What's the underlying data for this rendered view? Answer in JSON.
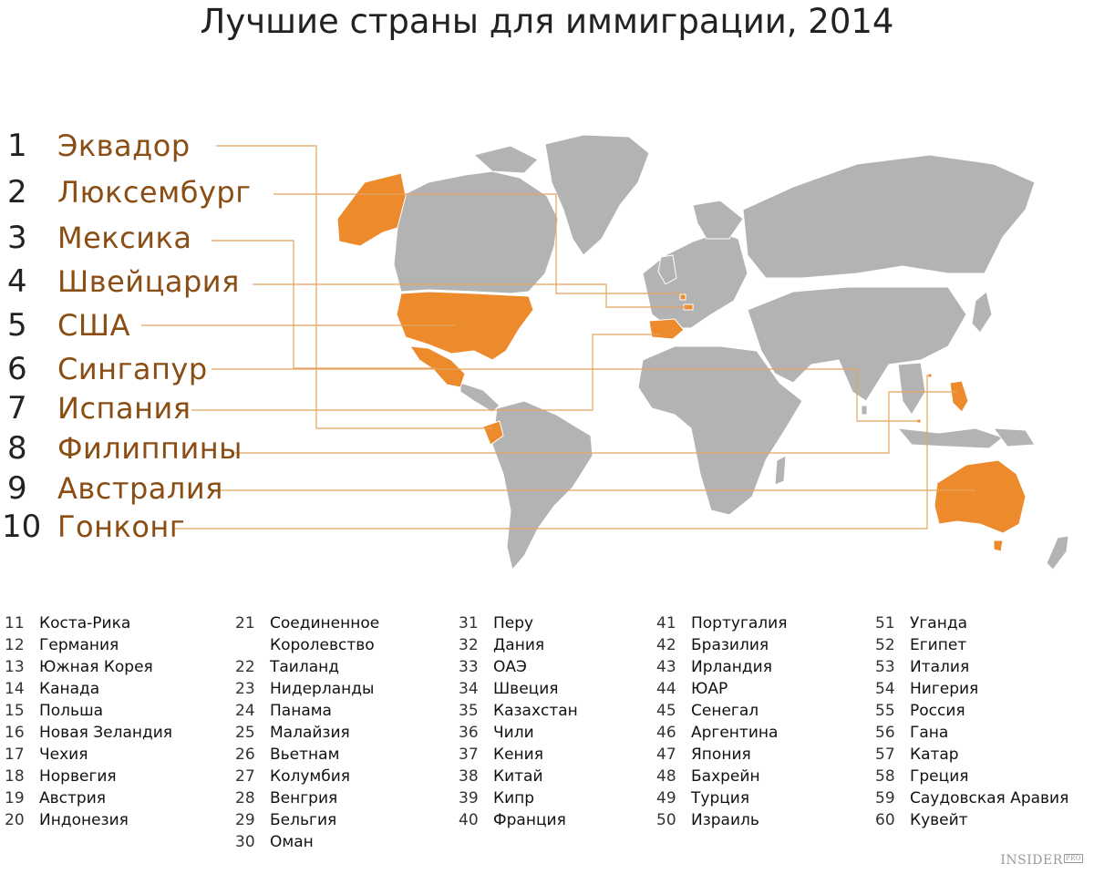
{
  "title": "Лучшие страны для иммиграции, 2014",
  "colors": {
    "highlight": "#ec8a2c",
    "land": "#b3b3b3",
    "leader": "#e5a45f",
    "rank_text": "#8a4d14"
  },
  "top10": [
    {
      "rank": "1",
      "name": "Эквадор"
    },
    {
      "rank": "2",
      "name": "Люксембург"
    },
    {
      "rank": "3",
      "name": "Мексика"
    },
    {
      "rank": "4",
      "name": "Швейцария"
    },
    {
      "rank": "5",
      "name": "США"
    },
    {
      "rank": "6",
      "name": "Сингапур"
    },
    {
      "rank": "7",
      "name": "Испания"
    },
    {
      "rank": "8",
      "name": "Филиппины"
    },
    {
      "rank": "9",
      "name": "Австралия"
    },
    {
      "rank": "10",
      "name": "Гонконг"
    }
  ],
  "list": [
    [
      {
        "rank": "11",
        "name": "Коста-Рика"
      },
      {
        "rank": "12",
        "name": "Германия"
      },
      {
        "rank": "13",
        "name": "Южная Корея"
      },
      {
        "rank": "14",
        "name": "Канада"
      },
      {
        "rank": "15",
        "name": "Польша"
      },
      {
        "rank": "16",
        "name": "Новая Зеландия"
      },
      {
        "rank": "17",
        "name": "Чехия"
      },
      {
        "rank": "18",
        "name": "Норвегия"
      },
      {
        "rank": "19",
        "name": "Австрия"
      },
      {
        "rank": "20",
        "name": "Индонезия"
      }
    ],
    [
      {
        "rank": "21",
        "name": "Соединенное"
      },
      {
        "rank": "",
        "name": "Королевство"
      },
      {
        "rank": "22",
        "name": "Таиланд"
      },
      {
        "rank": "23",
        "name": "Нидерланды"
      },
      {
        "rank": "24",
        "name": "Панама"
      },
      {
        "rank": "25",
        "name": "Малайзия"
      },
      {
        "rank": "26",
        "name": "Вьетнам"
      },
      {
        "rank": "27",
        "name": "Колумбия"
      },
      {
        "rank": "28",
        "name": "Венгрия"
      },
      {
        "rank": "29",
        "name": "Бельгия"
      },
      {
        "rank": "30",
        "name": "Оман"
      }
    ],
    [
      {
        "rank": "31",
        "name": "Перу"
      },
      {
        "rank": "32",
        "name": "Дания"
      },
      {
        "rank": "33",
        "name": "ОАЭ"
      },
      {
        "rank": "34",
        "name": "Швеция"
      },
      {
        "rank": "35",
        "name": "Казахстан"
      },
      {
        "rank": "36",
        "name": "Чили"
      },
      {
        "rank": "37",
        "name": "Кения"
      },
      {
        "rank": "38",
        "name": "Китай"
      },
      {
        "rank": "39",
        "name": "Кипр"
      },
      {
        "rank": "40",
        "name": "Франция"
      }
    ],
    [
      {
        "rank": "41",
        "name": "Португалия"
      },
      {
        "rank": "42",
        "name": "Бразилия"
      },
      {
        "rank": "43",
        "name": "Ирландия"
      },
      {
        "rank": "44",
        "name": "ЮАР"
      },
      {
        "rank": "45",
        "name": "Сенегал"
      },
      {
        "rank": "46",
        "name": "Аргентина"
      },
      {
        "rank": "47",
        "name": "Япония"
      },
      {
        "rank": "48",
        "name": "Бахрейн"
      },
      {
        "rank": "49",
        "name": "Турция"
      },
      {
        "rank": "50",
        "name": "Израиль"
      }
    ],
    [
      {
        "rank": "51",
        "name": "Уганда"
      },
      {
        "rank": "52",
        "name": "Египет"
      },
      {
        "rank": "53",
        "name": "Италия"
      },
      {
        "rank": "54",
        "name": "Нигерия"
      },
      {
        "rank": "55",
        "name": "Россия"
      },
      {
        "rank": "56",
        "name": "Гана"
      },
      {
        "rank": "57",
        "name": "Катар"
      },
      {
        "rank": "58",
        "name": "Греция"
      },
      {
        "rank": "59",
        "name": "Саудовская Аравия"
      },
      {
        "rank": "60",
        "name": "Кувейт"
      }
    ]
  ],
  "brand": {
    "name": "INSIDER",
    "suffix": "PRO"
  }
}
